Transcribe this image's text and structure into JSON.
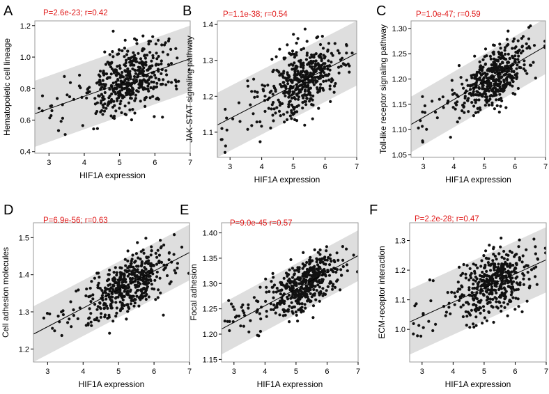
{
  "chart_data": [
    {
      "panel": "A",
      "type": "scatter",
      "stat_label": "P=2.6e-23; r=0.42",
      "xlabel": "HIF1A expression",
      "ylabel": "Hematopoietic cell lineage",
      "xlim": [
        2.6,
        7.0
      ],
      "ylim": [
        0.39,
        1.23
      ],
      "xticks": [
        3,
        4,
        5,
        6,
        7
      ],
      "yticks": [
        0.4,
        0.6,
        0.8,
        1.0,
        1.2
      ],
      "ytick_labels": [
        "0.4",
        "0.6",
        "0.8",
        "1.0",
        "1.2"
      ],
      "fit_line": [
        [
          2.6,
          0.64
        ],
        [
          7.0,
          0.99
        ]
      ],
      "band_halfwidth": 0.21,
      "n_points": 470,
      "seed": 11
    },
    {
      "panel": "B",
      "type": "scatter",
      "stat_label": "P=1.1e-38; r=0.54",
      "xlabel": "HIF1A expression",
      "ylabel": "JAK-STAT signaling pathway",
      "xlim": [
        2.6,
        7.0
      ],
      "ylim": [
        1.03,
        1.41
      ],
      "xticks": [
        3,
        4,
        5,
        6,
        7
      ],
      "yticks": [
        1.1,
        1.2,
        1.3,
        1.4
      ],
      "ytick_labels": [
        "1.1",
        "1.2",
        "1.3",
        "1.4"
      ],
      "fit_line": [
        [
          2.6,
          1.12
        ],
        [
          7.0,
          1.32
        ]
      ],
      "band_halfwidth": 0.09,
      "n_points": 470,
      "seed": 23
    },
    {
      "panel": "C",
      "type": "scatter",
      "stat_label": "P=1.0e-47; r=0.59",
      "xlabel": "HIF1A expression",
      "ylabel": "Toll-like receptor signaling pathway",
      "xlim": [
        2.6,
        7.0
      ],
      "ylim": [
        1.045,
        1.315
      ],
      "xticks": [
        3,
        4,
        5,
        6,
        7
      ],
      "yticks": [
        1.05,
        1.1,
        1.15,
        1.2,
        1.25,
        1.3
      ],
      "ytick_labels": [
        "1.05",
        "1.10",
        "1.15",
        "1.20",
        "1.25",
        "1.30"
      ],
      "fit_line": [
        [
          2.6,
          1.11
        ],
        [
          7.0,
          1.265
        ]
      ],
      "band_halfwidth": 0.055,
      "n_points": 470,
      "seed": 37
    },
    {
      "panel": "D",
      "type": "scatter",
      "stat_label": "P=6.9e-56; r=0.63",
      "xlabel": "HIF1A expression",
      "ylabel": "Cell adhesion molecules",
      "xlim": [
        2.6,
        7.0
      ],
      "ylim": [
        1.165,
        1.54
      ],
      "xticks": [
        3,
        4,
        5,
        6,
        7
      ],
      "yticks": [
        1.2,
        1.3,
        1.4,
        1.5
      ],
      "ytick_labels": [
        "1.2",
        "1.3",
        "1.4",
        "1.5"
      ],
      "fit_line": [
        [
          2.6,
          1.24
        ],
        [
          7.0,
          1.46
        ]
      ],
      "band_halfwidth": 0.075,
      "n_points": 470,
      "seed": 41
    },
    {
      "panel": "E",
      "type": "scatter",
      "stat_label": "P=9.0e-45 r=0.57",
      "xlabel": "HIF1A expression",
      "ylabel": "Focal adhesion",
      "xlim": [
        2.6,
        7.0
      ],
      "ylim": [
        1.145,
        1.42
      ],
      "xticks": [
        3,
        4,
        5,
        6,
        7
      ],
      "yticks": [
        1.15,
        1.2,
        1.25,
        1.3,
        1.35,
        1.4
      ],
      "ytick_labels": [
        "1.15",
        "1.20",
        "1.25",
        "1.30",
        "1.35",
        "1.40"
      ],
      "fit_line": [
        [
          2.6,
          1.21
        ],
        [
          7.0,
          1.355
        ]
      ],
      "band_halfwidth": 0.05,
      "n_points": 470,
      "seed": 53
    },
    {
      "panel": "F",
      "type": "scatter",
      "stat_label": "P=2.2e-28; r=0.47",
      "xlabel": "HIF1A expression",
      "ylabel": "ECM-receptor interaction",
      "xlim": [
        2.6,
        7.0
      ],
      "ylim": [
        0.89,
        1.36
      ],
      "xticks": [
        3,
        4,
        5,
        6,
        7
      ],
      "yticks": [
        1.0,
        1.1,
        1.2,
        1.3
      ],
      "ytick_labels": [
        "1.0",
        "1.1",
        "1.2",
        "1.3"
      ],
      "fit_line": [
        [
          2.6,
          1.025
        ],
        [
          7.0,
          1.235
        ]
      ],
      "band_halfwidth": 0.11,
      "n_points": 470,
      "seed": 67
    }
  ]
}
